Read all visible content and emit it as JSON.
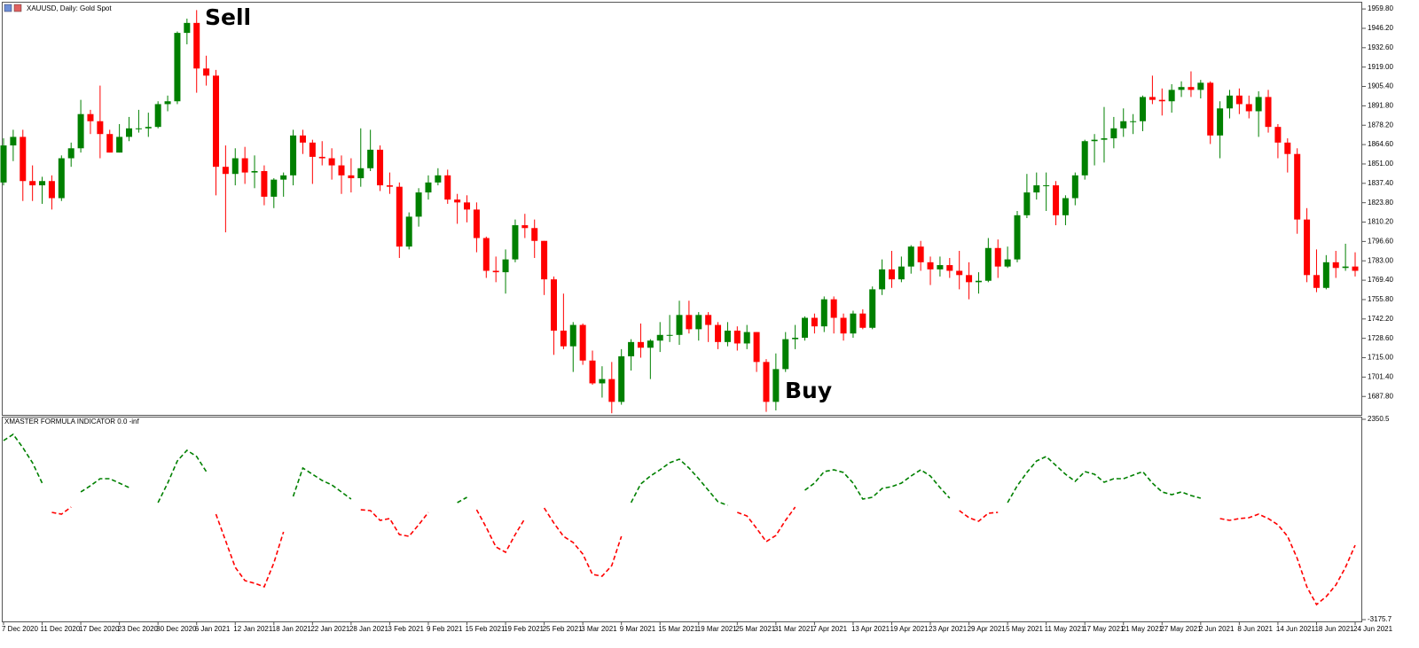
{
  "chart_data": [
    {
      "type": "candlestick",
      "title": "XAUUSD, Daily: Gold Spot",
      "annotations": [
        "Sell",
        "Buy"
      ],
      "up_color": "#008000",
      "down_color": "#ff0000",
      "categories": [
        "7 Dec 2020",
        null,
        null,
        null,
        "11 Dec 2020",
        null,
        null,
        null,
        "17 Dec 2020",
        null,
        null,
        null,
        "23 Dec 2020",
        null,
        null,
        null,
        "30 Dec 2020",
        null,
        null,
        null,
        "6 Jan 2021",
        null,
        null,
        null,
        "12 Jan 2021",
        null,
        null,
        null,
        "18 Jan 2021",
        null,
        null,
        null,
        "22 Jan 2021",
        null,
        null,
        null,
        "28 Jan 2021",
        null,
        null,
        null,
        "3 Feb 2021",
        null,
        null,
        null,
        "9 Feb 2021",
        null,
        null,
        null,
        "15 Feb 2021",
        null,
        null,
        null,
        "19 Feb 2021",
        null,
        null,
        null,
        "25 Feb 2021",
        null,
        null,
        null,
        "3 Mar 2021",
        null,
        null,
        null,
        "9 Mar 2021",
        null,
        null,
        null,
        "15 Mar 2021",
        null,
        null,
        null,
        "19 Mar 2021",
        null,
        null,
        null,
        "25 Mar 2021",
        null,
        null,
        null,
        "31 Mar 2021",
        null,
        null,
        null,
        "7 Apr 2021",
        null,
        null,
        null,
        "13 Apr 2021",
        null,
        null,
        null,
        "19 Apr 2021",
        null,
        null,
        null,
        "23 Apr 2021",
        null,
        null,
        null,
        "29 Apr 2021",
        null,
        null,
        null,
        "5 May 2021",
        null,
        null,
        null,
        "11 May 2021",
        null,
        null,
        null,
        "17 May 2021",
        null,
        null,
        null,
        "21 May 2021",
        null,
        null,
        null,
        "27 May 2021",
        null,
        null,
        null,
        "2 Jun 2021",
        null,
        null,
        null,
        "8 Jun 2021",
        null,
        null,
        null,
        "14 Jun 2021",
        null,
        null,
        null,
        "18 Jun 2021",
        null,
        null,
        null,
        "24 Jun 2021"
      ],
      "open": [
        1838,
        1864,
        1870,
        1839,
        1836,
        1839,
        1827,
        1855,
        1862,
        1886,
        1881,
        1872,
        1859,
        1870,
        1876,
        1876,
        1877,
        1893,
        1895,
        1943,
        1950,
        1918,
        1913,
        1849,
        1844,
        1855,
        1845,
        1846,
        1828,
        1840,
        1843,
        1871,
        1866,
        1856,
        1855,
        1850,
        1843,
        1841,
        1848,
        1861,
        1836,
        1835,
        1793,
        1814,
        1831,
        1838,
        1843,
        1826,
        1824,
        1819,
        1799,
        1776,
        1775,
        1784,
        1808,
        1806,
        1797,
        1770,
        1734,
        1723,
        1738,
        1713,
        1697,
        1700,
        1684,
        1716,
        1726,
        1722,
        1727,
        1731,
        1731,
        1745,
        1735,
        1745,
        1738,
        1726,
        1734,
        1725,
        1733,
        1712,
        1684,
        1707,
        1728,
        1729,
        1743,
        1737,
        1756,
        1743,
        1732,
        1746,
        1736,
        1763,
        1777,
        1770,
        1779,
        1793,
        1782,
        1777,
        1780,
        1776,
        1773,
        1768,
        1769,
        1792,
        1779,
        1784,
        1815,
        1831,
        1836,
        1836,
        1815,
        1827,
        1843,
        1867,
        1868,
        1869,
        1876,
        1881,
        1881,
        1898,
        1896,
        1895,
        1903,
        1905,
        1903,
        1908,
        1871,
        1890,
        1899,
        1893,
        1888,
        1898,
        1877,
        1866,
        1858,
        1812,
        1773,
        1764,
        1782,
        1778,
        1779
      ],
      "high": [
        1869,
        1875,
        1875,
        1850,
        1842,
        1843,
        1857,
        1866,
        1896,
        1889,
        1906,
        1875,
        1879,
        1884,
        1889,
        1887,
        1895,
        1899,
        1944,
        1953,
        1959,
        1927,
        1917,
        1864,
        1862,
        1863,
        1857,
        1850,
        1841,
        1845,
        1875,
        1875,
        1868,
        1867,
        1862,
        1857,
        1855,
        1876,
        1875,
        1864,
        1845,
        1838,
        1817,
        1834,
        1843,
        1848,
        1847,
        1830,
        1829,
        1824,
        1800,
        1786,
        1791,
        1812,
        1816,
        1812,
        1797,
        1772,
        1760,
        1740,
        1739,
        1720,
        1709,
        1712,
        1721,
        1728,
        1739,
        1728,
        1740,
        1745,
        1755,
        1755,
        1747,
        1747,
        1740,
        1740,
        1737,
        1738,
        1733,
        1714,
        1718,
        1733,
        1738,
        1744,
        1746,
        1758,
        1758,
        1746,
        1748,
        1749,
        1765,
        1784,
        1790,
        1786,
        1794,
        1797,
        1786,
        1786,
        1785,
        1790,
        1782,
        1775,
        1799,
        1798,
        1793,
        1818,
        1844,
        1845,
        1845,
        1839,
        1829,
        1845,
        1868,
        1872,
        1891,
        1884,
        1890,
        1886,
        1899,
        1913,
        1904,
        1907,
        1909,
        1916,
        1910,
        1909,
        1895,
        1903,
        1904,
        1899,
        1902,
        1903,
        1879,
        1869,
        1862,
        1820,
        1791,
        1787,
        1790,
        1795,
        1789
      ],
      "low": [
        1836,
        1853,
        1825,
        1825,
        1823,
        1819,
        1825,
        1849,
        1859,
        1872,
        1855,
        1859,
        1859,
        1867,
        1873,
        1870,
        1876,
        1888,
        1893,
        1935,
        1901,
        1906,
        1829,
        1803,
        1836,
        1837,
        1834,
        1822,
        1820,
        1828,
        1836,
        1858,
        1837,
        1850,
        1840,
        1830,
        1831,
        1835,
        1846,
        1832,
        1830,
        1785,
        1791,
        1807,
        1826,
        1836,
        1823,
        1809,
        1810,
        1789,
        1771,
        1768,
        1760,
        1782,
        1799,
        1785,
        1759,
        1717,
        1721,
        1705,
        1710,
        1696,
        1687,
        1676,
        1682,
        1706,
        1715,
        1700,
        1719,
        1726,
        1724,
        1732,
        1727,
        1726,
        1721,
        1723,
        1720,
        1721,
        1705,
        1677,
        1678,
        1705,
        1721,
        1727,
        1732,
        1733,
        1732,
        1727,
        1729,
        1735,
        1735,
        1759,
        1764,
        1768,
        1774,
        1776,
        1766,
        1772,
        1771,
        1763,
        1756,
        1760,
        1768,
        1771,
        1778,
        1782,
        1813,
        1826,
        1818,
        1808,
        1808,
        1822,
        1840,
        1850,
        1852,
        1862,
        1870,
        1872,
        1874,
        1893,
        1885,
        1887,
        1898,
        1898,
        1897,
        1865,
        1855,
        1883,
        1886,
        1883,
        1870,
        1873,
        1855,
        1845,
        1802,
        1768,
        1761,
        1763,
        1771,
        1776,
        1772
      ],
      "close": [
        1864,
        1870,
        1839,
        1836,
        1839,
        1827,
        1855,
        1862,
        1886,
        1881,
        1872,
        1859,
        1870,
        1876,
        1876,
        1877,
        1893,
        1895,
        1943,
        1950,
        1918,
        1913,
        1849,
        1844,
        1855,
        1845,
        1846,
        1828,
        1840,
        1843,
        1871,
        1866,
        1856,
        1855,
        1850,
        1843,
        1841,
        1848,
        1861,
        1836,
        1835,
        1793,
        1814,
        1831,
        1838,
        1843,
        1826,
        1824,
        1819,
        1799,
        1776,
        1775,
        1784,
        1808,
        1806,
        1797,
        1770,
        1734,
        1723,
        1738,
        1713,
        1697,
        1700,
        1684,
        1716,
        1726,
        1722,
        1727,
        1731,
        1731,
        1745,
        1735,
        1745,
        1738,
        1726,
        1734,
        1725,
        1733,
        1712,
        1684,
        1707,
        1728,
        1729,
        1743,
        1737,
        1756,
        1743,
        1732,
        1746,
        1736,
        1763,
        1777,
        1770,
        1779,
        1793,
        1782,
        1777,
        1780,
        1776,
        1773,
        1768,
        1769,
        1792,
        1779,
        1784,
        1815,
        1831,
        1836,
        1836,
        1815,
        1827,
        1843,
        1867,
        1868,
        1869,
        1876,
        1881,
        1881,
        1898,
        1896,
        1895,
        1903,
        1905,
        1903,
        1908,
        1871,
        1890,
        1899,
        1893,
        1888,
        1898,
        1877,
        1866,
        1858,
        1812,
        1773,
        1764,
        1782,
        1778,
        1779,
        1776
      ],
      "ylim": [
        1675.5,
        1963.6
      ],
      "yticks": [
        {
          "value": 1959.8,
          "label": "1959.80"
        },
        {
          "value": 1946.2,
          "label": "1946.20"
        },
        {
          "value": 1932.6,
          "label": "1932.60"
        },
        {
          "value": 1919,
          "label": "1919.00"
        },
        {
          "value": 1905.4,
          "label": "1905.40"
        },
        {
          "value": 1891.8,
          "label": "1891.80"
        },
        {
          "value": 1878.2,
          "label": "1878.20"
        },
        {
          "value": 1864.6,
          "label": "1864.60"
        },
        {
          "value": 1851,
          "label": "1851.00"
        },
        {
          "value": 1837.4,
          "label": "1837.40"
        },
        {
          "value": 1823.8,
          "label": "1823.80"
        },
        {
          "value": 1810.2,
          "label": "1810.20"
        },
        {
          "value": 1796.6,
          "label": "1796.60"
        },
        {
          "value": 1783,
          "label": "1783.00"
        },
        {
          "value": 1769.4,
          "label": "1769.40"
        },
        {
          "value": 1755.8,
          "label": "1755.80"
        },
        {
          "value": 1742.2,
          "label": "1742.20"
        },
        {
          "value": 1728.6,
          "label": "1728.60"
        },
        {
          "value": 1715,
          "label": "1715.00"
        },
        {
          "value": 1701.4,
          "label": "1701.40"
        },
        {
          "value": 1687.8,
          "label": "1687.80"
        }
      ]
    },
    {
      "type": "line",
      "title": "XMASTER FORMULA INDICATOR 0.0 -inf",
      "dashed": true,
      "series": [
        {
          "color": "#008000",
          "values": [
            1764,
            1935,
            1568,
            1152,
            590,
            null,
            null,
            null,
            346,
            517,
            712,
            712,
            590,
            468,
            null,
            null,
            52,
            590,
            1201,
            1495,
            1324,
            908,
            null,
            null,
            null,
            null,
            null,
            null,
            null,
            null,
            223,
            1006,
            835,
            663,
            541,
            346,
            150,
            null,
            null,
            null,
            null,
            null,
            null,
            null,
            null,
            null,
            null,
            52,
            199,
            null,
            null,
            null,
            null,
            null,
            null,
            null,
            null,
            null,
            null,
            null,
            null,
            null,
            null,
            null,
            null,
            52,
            566,
            786,
            957,
            1152,
            1250,
            1006,
            712,
            394,
            77,
            -21,
            null,
            null,
            null,
            null,
            null,
            null,
            null,
            394,
            590,
            908,
            957,
            884,
            590,
            150,
            199,
            443,
            492,
            590,
            786,
            957,
            786,
            468,
            175,
            null,
            null,
            null,
            null,
            null,
            52,
            517,
            884,
            1201,
            1324,
            1079,
            835,
            639,
            908,
            835,
            614,
            712,
            712,
            810,
            908,
            590,
            346,
            272,
            346,
            248,
            175,
            null,
            null,
            null,
            null,
            null,
            null,
            null,
            null,
            null,
            null,
            null,
            null,
            null,
            null,
            null,
            null
          ]
        },
        {
          "color": "#ff0000",
          "values": [
            null,
            null,
            null,
            null,
            null,
            -217,
            -266,
            -70,
            null,
            null,
            null,
            null,
            null,
            null,
            null,
            null,
            null,
            null,
            null,
            null,
            null,
            null,
            -266,
            -999,
            -1733,
            -2099,
            -2173,
            -2270,
            -1610,
            -755,
            null,
            null,
            null,
            null,
            null,
            null,
            null,
            -144,
            -168,
            -437,
            -388,
            -828,
            -877,
            -559,
            -217,
            null,
            null,
            null,
            null,
            -144,
            -632,
            -1170,
            -1317,
            -828,
            -388,
            null,
            -95,
            -510,
            -877,
            -1048,
            -1366,
            -1928,
            -1977,
            -1684,
            -877,
            null,
            null,
            null,
            null,
            null,
            null,
            null,
            null,
            null,
            null,
            null,
            -217,
            -315,
            -657,
            -1024,
            -853,
            -437,
            -70,
            null,
            null,
            null,
            null,
            null,
            null,
            null,
            null,
            null,
            null,
            null,
            null,
            null,
            null,
            null,
            null,
            -168,
            -364,
            -461,
            -241,
            -217,
            null,
            null,
            null,
            null,
            null,
            null,
            null,
            null,
            null,
            null,
            null,
            null,
            null,
            null,
            null,
            null,
            null,
            null,
            null,
            null,
            null,
            null,
            -388,
            -437,
            -388,
            -364,
            -266,
            -388,
            -559,
            -877,
            -1488,
            -2270,
            -2760,
            -2540,
            -2222,
            -1733,
            -1122
          ]
        }
      ],
      "ylim": [
        -3224.6,
        2423.9
      ],
      "yticks": [
        2350.5,
        -3175.7
      ]
    }
  ]
}
